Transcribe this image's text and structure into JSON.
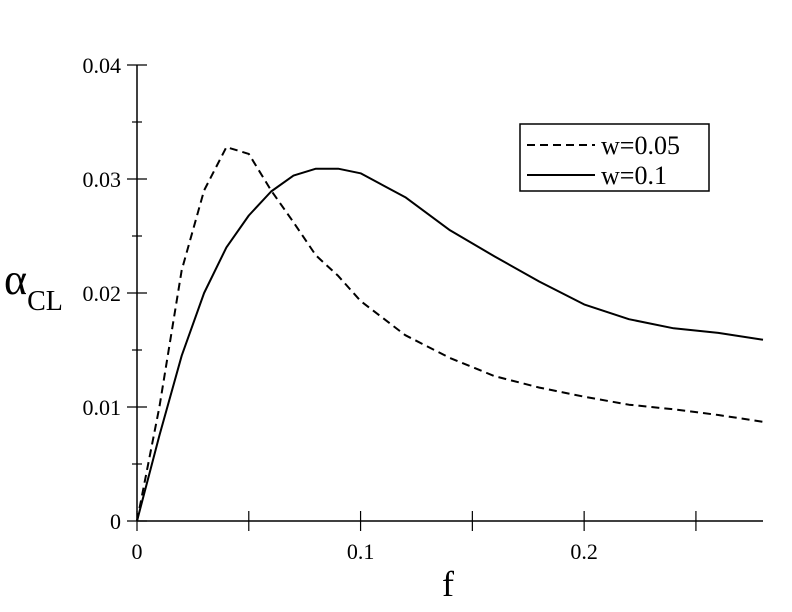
{
  "chart_data": {
    "type": "line",
    "xlabel": "f",
    "ylabel": "α",
    "ylabel_subscript": "CL",
    "xlim": [
      0,
      0.28
    ],
    "ylim": [
      0,
      0.04
    ],
    "x_major_ticks": [
      0,
      0.05,
      0.1,
      0.15,
      0.2,
      0.25
    ],
    "x_tick_labels": [
      {
        "value": 0,
        "text": "0"
      },
      {
        "value": 0.1,
        "text": "0.1"
      },
      {
        "value": 0.2,
        "text": "0.2"
      }
    ],
    "y_major_ticks": [
      0,
      0.01,
      0.02,
      0.03,
      0.04
    ],
    "y_minor_ticks": [
      0.005,
      0.015,
      0.025,
      0.035
    ],
    "y_tick_labels": [
      {
        "value": 0,
        "text": "0"
      },
      {
        "value": 0.01,
        "text": "0.01"
      },
      {
        "value": 0.02,
        "text": "0.02"
      },
      {
        "value": 0.03,
        "text": "0.03"
      },
      {
        "value": 0.04,
        "text": "0.04"
      }
    ],
    "grid": false,
    "legend_position": "top-right",
    "series": [
      {
        "name": "w=0.05",
        "dash": "dashed",
        "color": "#000000",
        "x": [
          0,
          0.01,
          0.02,
          0.03,
          0.04,
          0.05,
          0.06,
          0.07,
          0.08,
          0.09,
          0.1,
          0.12,
          0.14,
          0.16,
          0.18,
          0.2,
          0.22,
          0.24,
          0.26,
          0.28
        ],
        "y": [
          0,
          0.01,
          0.022,
          0.029,
          0.0328,
          0.0322,
          0.029,
          0.0262,
          0.0233,
          0.0215,
          0.0193,
          0.0163,
          0.0143,
          0.0127,
          0.0117,
          0.0109,
          0.0102,
          0.0098,
          0.0093,
          0.0087
        ]
      },
      {
        "name": "w=0.1",
        "dash": "solid",
        "color": "#000000",
        "x": [
          0,
          0.01,
          0.02,
          0.03,
          0.04,
          0.05,
          0.06,
          0.07,
          0.08,
          0.09,
          0.1,
          0.12,
          0.14,
          0.16,
          0.18,
          0.2,
          0.22,
          0.24,
          0.26,
          0.28
        ],
        "y": [
          0,
          0.0075,
          0.0145,
          0.02,
          0.024,
          0.0268,
          0.0289,
          0.0303,
          0.0309,
          0.0309,
          0.0305,
          0.0284,
          0.0255,
          0.0232,
          0.021,
          0.019,
          0.0177,
          0.0169,
          0.0165,
          0.0159
        ]
      }
    ]
  }
}
